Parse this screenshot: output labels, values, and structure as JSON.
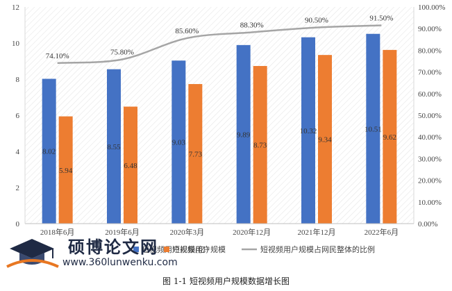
{
  "chart_data": {
    "type": "bar",
    "title": "",
    "categories": [
      "2018年6月",
      "2019年6月",
      "2020年3月",
      "2020年12月",
      "2021年12月",
      "2022年6月"
    ],
    "series": [
      {
        "name": "短视频用户规模(亿)",
        "values": [
          8.02,
          8.55,
          9.03,
          9.89,
          10.32,
          10.51
        ],
        "color": "#4472c4"
      },
      {
        "name": "短视频用户规模",
        "values": [
          5.94,
          6.48,
          7.73,
          8.73,
          9.34,
          9.62
        ],
        "color": "#ed7d31"
      }
    ],
    "line_series": {
      "name": "短视频用户规模占网民整体的比例",
      "values": [
        74.1,
        75.8,
        85.6,
        88.3,
        90.5,
        91.5
      ],
      "labels": [
        "74.10%",
        "75.80%",
        "85.60%",
        "88.30%",
        "90.50%",
        "91.50%"
      ],
      "color": "#a5a5a5",
      "axis": "right"
    },
    "ylim": [
      0,
      12
    ],
    "y_ticks": [
      "0",
      "2",
      "4",
      "6",
      "8",
      "10",
      "12"
    ],
    "y2lim": [
      0,
      100
    ],
    "y2_ticks": [
      "0.00%",
      "10.00%",
      "20.00%",
      "30.00%",
      "40.00%",
      "50.00%",
      "60.00%",
      "70.00%",
      "80.00%",
      "90.00%",
      "100.00%"
    ],
    "legend_position": "bottom",
    "grid": false,
    "bar_labels_1": [
      "8.02",
      "8.55",
      "9.03",
      "9.89",
      "10.32",
      "10.51"
    ],
    "bar_labels_2": [
      "5.94",
      "6.48",
      "7.73",
      "8.73",
      "9.34",
      "9.62"
    ]
  },
  "caption": "图 1-1 短视频用户规模数据增长图",
  "watermark": {
    "title": "硕博论文网",
    "url": "www.360lunwenku.com"
  }
}
